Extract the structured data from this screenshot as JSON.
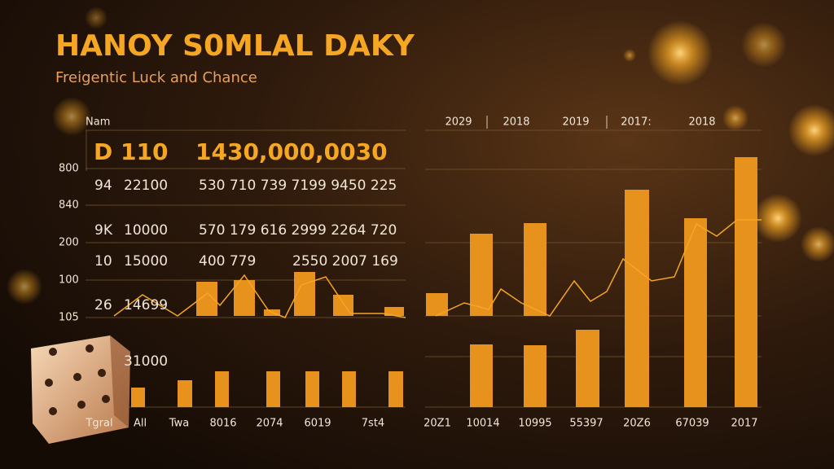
{
  "header": {
    "title": "HANOY S0MLAL DAKY",
    "subtitle": "Freigentic Luck and Chance"
  },
  "table": {
    "column_label": "Nam",
    "highlight": [
      "D 110",
      "1430,000,0030"
    ],
    "rows": [
      [
        "94",
        "22100",
        "530 710 739 7199 9450 225"
      ],
      [
        "9K",
        "10000",
        "570 179 616 2999 2264 720"
      ],
      [
        "10",
        "15000",
        "400 779",
        "2550 2007 169"
      ],
      [
        "26",
        "14699"
      ],
      [
        "31000"
      ]
    ]
  },
  "left_axis": [
    "800",
    "840",
    "200",
    "100",
    "105"
  ],
  "left_labels": [
    "Tgral",
    "All",
    "Twa",
    "8016",
    "2074",
    "6019",
    "7st4"
  ],
  "right_header": [
    "2029",
    "2018",
    "2019",
    "2017:",
    "2018"
  ],
  "right_labels": [
    "20Z1",
    "10014",
    "10995",
    "55397",
    "20Z6",
    "67039",
    "2017"
  ]
}
